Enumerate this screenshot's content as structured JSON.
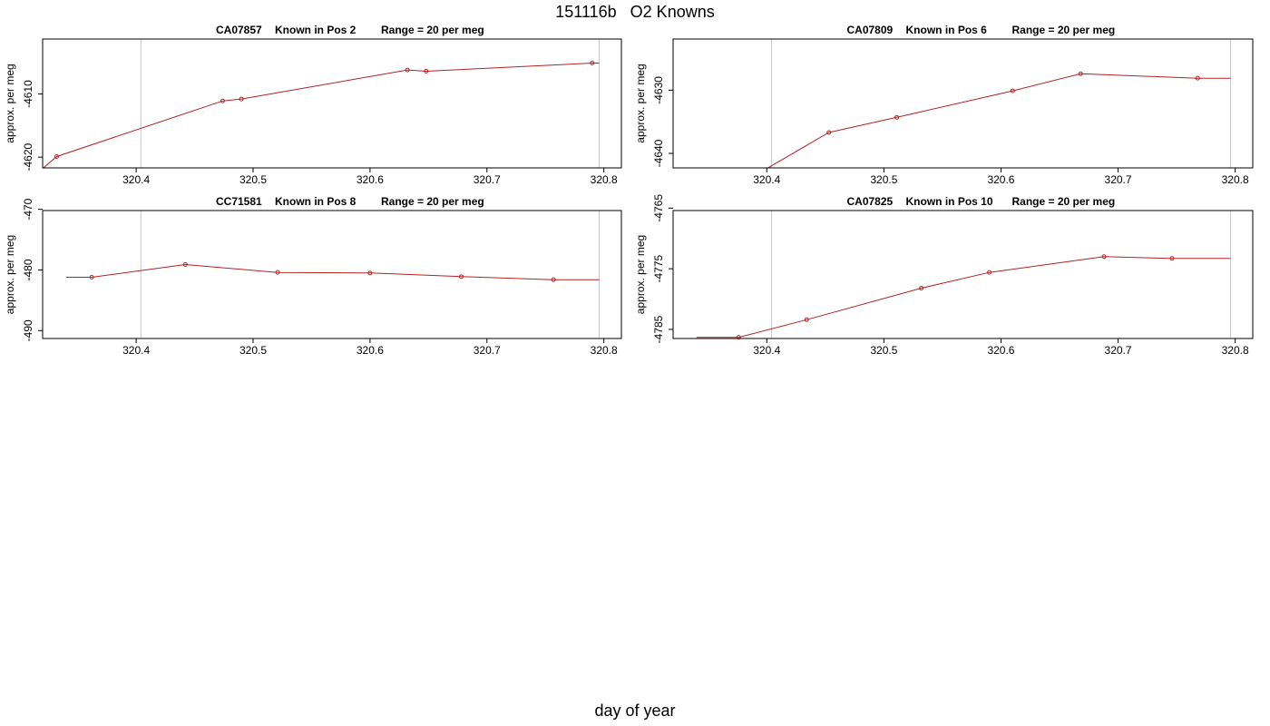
{
  "page": {
    "title": "151116b   O2 Knowns",
    "x_title": "day of year"
  },
  "colors": {
    "line": "#b22222",
    "point": "#b22222",
    "vline": "#c8c8c8",
    "frame": "#000000"
  },
  "chart_data": [
    {
      "type": "line",
      "title_parts": [
        "CA07857",
        "Known in Pos 2",
        "Range = 20 per meg"
      ],
      "ylabel": "approx. per meg",
      "xlim": [
        320.32,
        320.815
      ],
      "ylim": [
        -4621.7,
        -4601.3
      ],
      "xticks": [
        320.4,
        320.5,
        320.6,
        320.7,
        320.8
      ],
      "yticks": [
        -4620,
        -4610
      ],
      "vlines": [
        320.404,
        320.796
      ],
      "line_x": [
        320.32,
        320.332,
        320.474,
        320.49,
        320.632,
        320.648,
        320.79,
        320.796
      ],
      "line_y": [
        -4621.8,
        -4619.9,
        -4611.1,
        -4610.8,
        -4606.2,
        -4606.4,
        -4605.1,
        -4605.1
      ],
      "points_x": [
        320.332,
        320.474,
        320.49,
        320.632,
        320.648,
        320.79
      ],
      "points_y": [
        -4619.9,
        -4611.1,
        -4610.8,
        -4606.2,
        -4606.4,
        -4605.1
      ]
    },
    {
      "type": "line",
      "title_parts": [
        "CA07809",
        "Known in Pos 6",
        "Range = 20 per meg"
      ],
      "ylabel": "approx. per meg",
      "xlim": [
        320.32,
        320.815
      ],
      "ylim": [
        -4642.3,
        -4621.9
      ],
      "xticks": [
        320.4,
        320.5,
        320.6,
        320.7,
        320.8
      ],
      "yticks": [
        -4640,
        -4630
      ],
      "vlines": [
        320.404,
        320.796
      ],
      "line_x": [
        320.4,
        320.453,
        320.511,
        320.61,
        320.668,
        320.768,
        320.796
      ],
      "line_y": [
        -4642.4,
        -4636.7,
        -4634.3,
        -4630.1,
        -4627.4,
        -4628.1,
        -4628.1
      ],
      "points_x": [
        320.453,
        320.511,
        320.61,
        320.668,
        320.768
      ],
      "points_y": [
        -4636.7,
        -4634.3,
        -4630.1,
        -4627.4,
        -4628.1
      ]
    },
    {
      "type": "line",
      "title_parts": [
        "CC71581",
        "Known in Pos 8",
        "Range = 20 per meg"
      ],
      "ylabel": "approx. per meg",
      "xlim": [
        320.32,
        320.815
      ],
      "ylim": [
        -491.3,
        -470.2
      ],
      "xticks": [
        320.4,
        320.5,
        320.6,
        320.7,
        320.8
      ],
      "yticks": [
        -490,
        -480,
        -470
      ],
      "vlines": [
        320.404,
        320.796
      ],
      "line_x": [
        320.34,
        320.362,
        320.442,
        320.521,
        320.6,
        320.678,
        320.757,
        320.796
      ],
      "line_y": [
        -481.2,
        -481.2,
        -479.1,
        -480.4,
        -480.5,
        -481.1,
        -481.6,
        -481.6
      ],
      "points_x": [
        320.362,
        320.442,
        320.521,
        320.6,
        320.678,
        320.757
      ],
      "points_y": [
        -481.2,
        -479.1,
        -480.4,
        -480.5,
        -481.1,
        -481.6
      ]
    },
    {
      "type": "line",
      "title_parts": [
        "CA07825",
        "Known in Pos 10",
        "Range = 20 per meg"
      ],
      "ylabel": "approx. per meg",
      "xlim": [
        320.32,
        320.815
      ],
      "ylim": [
        -4786.5,
        -4765.4
      ],
      "xticks": [
        320.4,
        320.5,
        320.6,
        320.7,
        320.8
      ],
      "yticks": [
        -4785,
        -4775,
        -4765
      ],
      "vlines": [
        320.404,
        320.796
      ],
      "line_x": [
        320.34,
        320.376,
        320.434,
        320.532,
        320.59,
        320.688,
        320.746,
        320.796
      ],
      "line_y": [
        -4786.3,
        -4786.3,
        -4783.4,
        -4778.2,
        -4775.6,
        -4773.0,
        -4773.3,
        -4773.3
      ],
      "points_x": [
        320.376,
        320.434,
        320.532,
        320.59,
        320.688,
        320.746
      ],
      "points_y": [
        -4786.3,
        -4783.4,
        -4778.2,
        -4775.6,
        -4773.0,
        -4773.3
      ]
    }
  ]
}
